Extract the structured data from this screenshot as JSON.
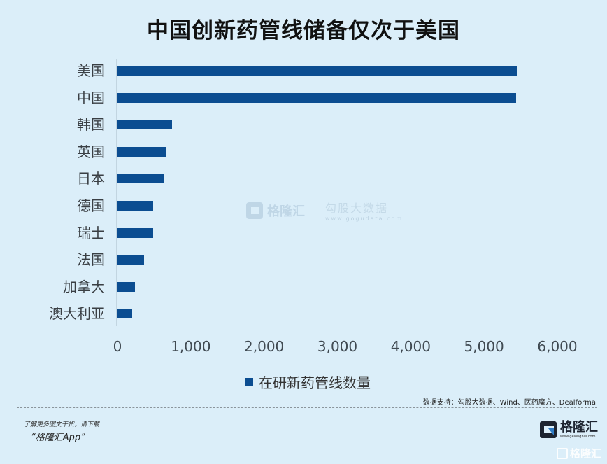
{
  "title": "中国创新药管线储备仅次于美国",
  "chart_data": {
    "type": "bar",
    "orientation": "horizontal",
    "title": "中国创新药管线储备仅次于美国",
    "categories": [
      "美国",
      "中国",
      "韩国",
      "英国",
      "日本",
      "德国",
      "瑞士",
      "法国",
      "加拿大",
      "澳大利亚"
    ],
    "series": [
      {
        "name": "在研新药管线数量",
        "color": "#0b4d91",
        "values": [
          5455,
          5435,
          745,
          660,
          640,
          490,
          490,
          365,
          240,
          200
        ]
      }
    ],
    "xlabel": "",
    "ylabel": "",
    "xlim": [
      0,
      6000
    ],
    "x_ticks": [
      "0",
      "1,000",
      "2,000",
      "3,000",
      "4,000",
      "5,000",
      "6,000"
    ],
    "grid": false,
    "legend_position": "bottom"
  },
  "legend": {
    "label": "在研新药管线数量"
  },
  "watermark": {
    "brand": "格隆汇",
    "partner": "勾股大数据",
    "partner_url": "www.gogudata.com"
  },
  "footer": {
    "source": "数据支持：勾股大数据、Wind、医药魔方、Dealforma",
    "promo_line1": "了解更多图文干货，请下载",
    "promo_line2": "“格隆汇App”",
    "brand_name": "格隆汇",
    "brand_url": "www.gelonghui.com",
    "brand_name_2": "格隆汇"
  },
  "colors": {
    "background": "#dbeef9",
    "bar": "#0b4d91"
  }
}
